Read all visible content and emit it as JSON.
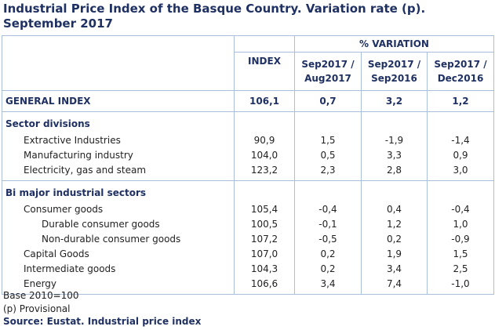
{
  "title": "Industrial Price Index of the Basque Country. Variation rate (p). September 2017",
  "table": {
    "group_header": "% VARIATION",
    "columns": [
      "INDEX",
      "Sep2017 / Aug2017",
      "Sep2017 / Sep2016",
      "Sep2017 / Dec2016"
    ],
    "general": {
      "label": "GENERAL INDEX",
      "cells": [
        "106,1",
        "0,7",
        "3,2",
        "1,2"
      ]
    },
    "sections": [
      {
        "title": "Sector divisions",
        "rows": [
          {
            "label": "Extractive Industries",
            "cells": [
              "90,9",
              "1,5",
              "-1,9",
              "-1,4"
            ]
          },
          {
            "label": "Manufacturing industry",
            "cells": [
              "104,0",
              "0,5",
              "3,3",
              "0,9"
            ]
          },
          {
            "label": "Electricity, gas and steam",
            "cells": [
              "123,2",
              "2,3",
              "2,8",
              "3,0"
            ]
          }
        ]
      },
      {
        "title": "Bi major industrial sectors",
        "rows": [
          {
            "label": "Consumer goods",
            "cells": [
              "105,4",
              "-0,4",
              "0,4",
              "-0,4"
            ],
            "rows": [
              {
                "label": "Durable consumer goods",
                "cells": [
                  "100,5",
                  "-0,1",
                  "1,2",
                  "1,0"
                ]
              },
              {
                "label": "Non-durable consumer goods",
                "cells": [
                  "107,2",
                  "-0,5",
                  "0,2",
                  "-0,9"
                ]
              }
            ]
          },
          {
            "label": "Capital Goods",
            "cells": [
              "107,0",
              "0,2",
              "1,9",
              "1,5"
            ]
          },
          {
            "label": "Intermediate goods",
            "cells": [
              "104,3",
              "0,2",
              "3,4",
              "2,5"
            ]
          },
          {
            "label": "Energy",
            "cells": [
              "106,6",
              "3,4",
              "7,4",
              "-1,0"
            ]
          }
        ]
      }
    ]
  },
  "notes": [
    "Base 2010=100",
    "(p) Provisional"
  ],
  "source": "Source: Eustat. Industrial price index"
}
